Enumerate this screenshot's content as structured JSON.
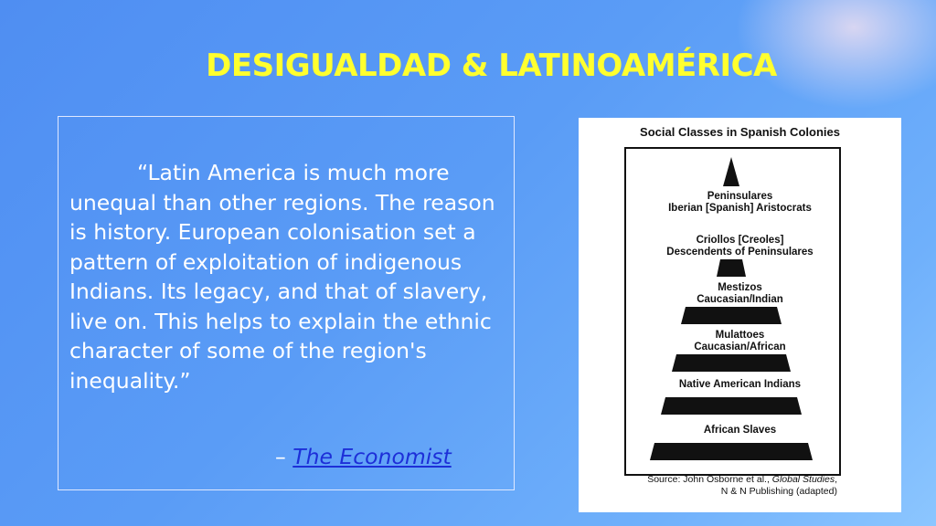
{
  "slide": {
    "title": "DESIGUALDAD & LATINOAMÉRICA",
    "quote": "“Latin America is much more unequal than other regions. The reason is history. European colonisation set a pattern of exploitation of indigenous Indians.  Its legacy, and that of slavery, live  on. This helps to explain the  ethnic character of some of the  region's inequality.”",
    "attribution_dash": "– ",
    "attribution_link": "The Economist"
  },
  "diagram": {
    "title": "Social Classes in Spanish Colonies",
    "levels": [
      {
        "line1": "Peninsulares",
        "line2": "Iberian [Spanish] Aristocrats"
      },
      {
        "line1": "Criollos [Creoles]",
        "line2": "Descendents of Peninsulares"
      },
      {
        "line1": "Mestizos",
        "line2": "Caucasian/Indian"
      },
      {
        "line1": "Mulattoes",
        "line2": "Caucasian/African"
      },
      {
        "line1": "Native American Indians",
        "line2": ""
      },
      {
        "line1": "African Slaves",
        "line2": ""
      }
    ],
    "source_prefix": "Source: John Osborne et al., ",
    "source_italic": "Global Studies",
    "source_suffix": ",",
    "source_line2": "N & N Publishing (adapted)"
  }
}
